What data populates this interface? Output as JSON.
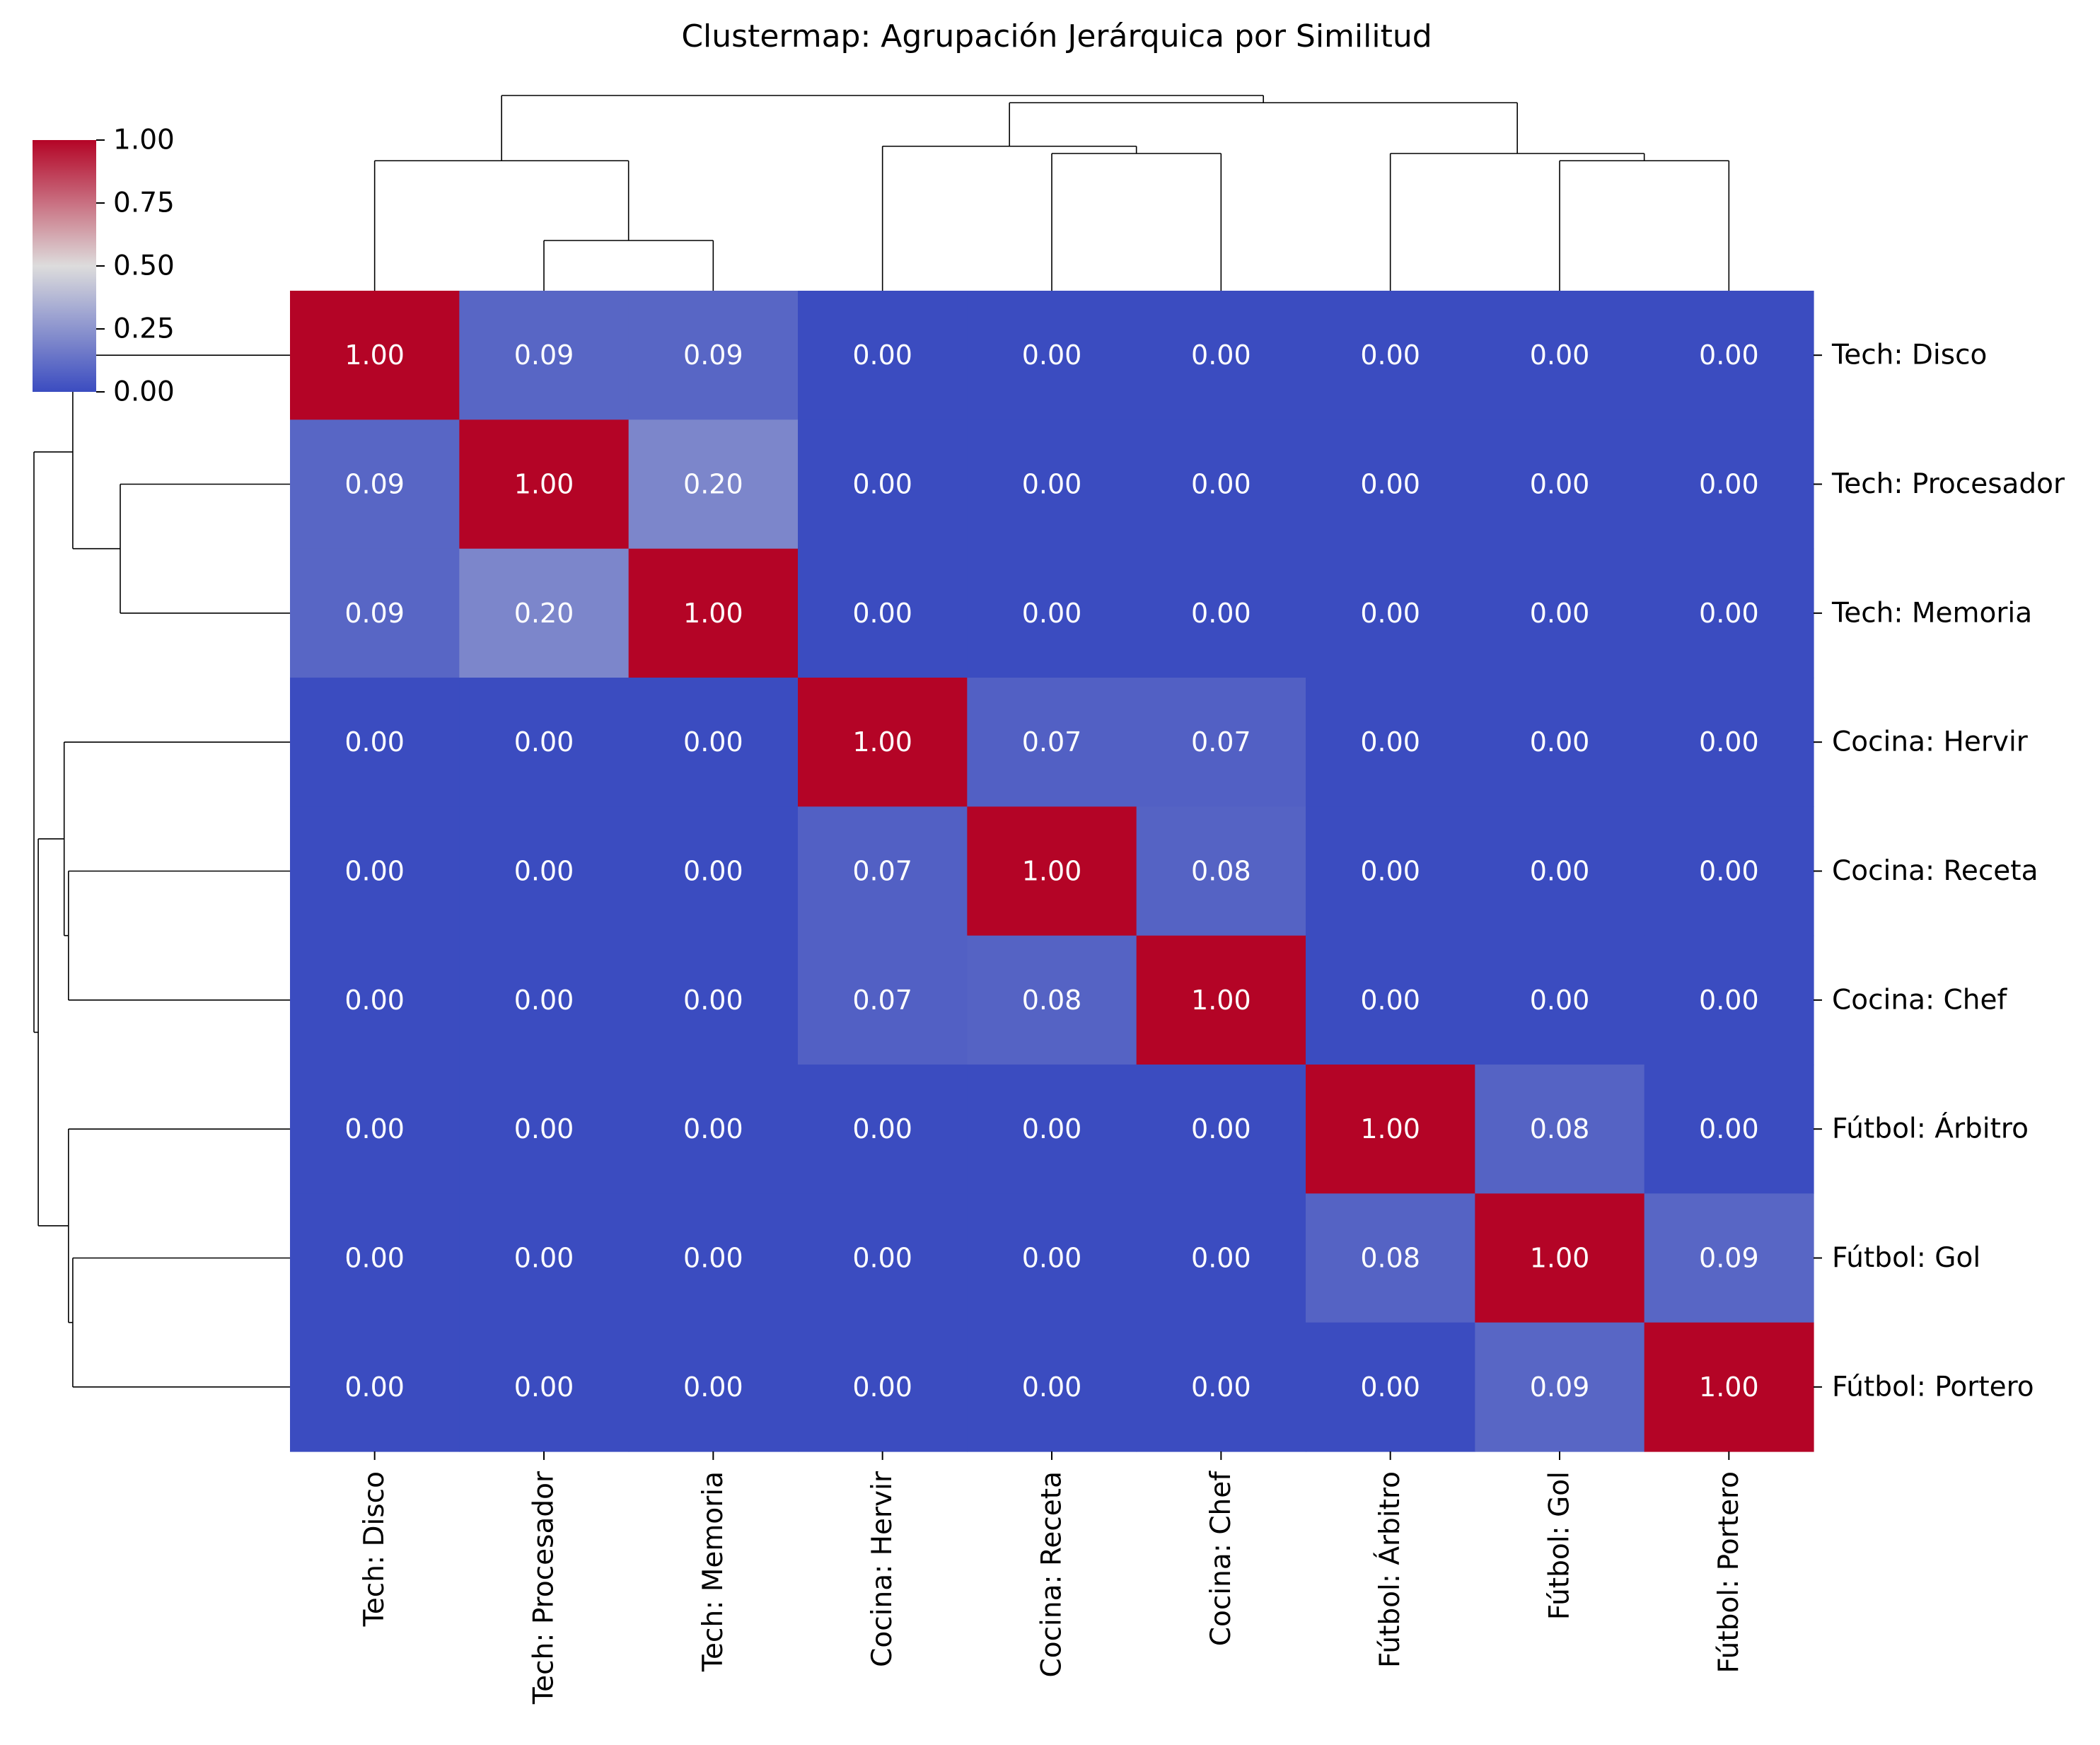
{
  "chart_data": {
    "type": "heatmap",
    "title": "Clustermap: Agrupación Jerárquica por Similitud",
    "labels": [
      "Tech: Disco",
      "Tech: Procesador",
      "Tech: Memoria",
      "Cocina: Hervir",
      "Cocina: Receta",
      "Cocina: Chef",
      "Fútbol: Árbitro",
      "Fútbol: Gol",
      "Fútbol: Portero"
    ],
    "matrix": [
      [
        1.0,
        0.09,
        0.09,
        0.0,
        0.0,
        0.0,
        0.0,
        0.0,
        0.0
      ],
      [
        0.09,
        1.0,
        0.2,
        0.0,
        0.0,
        0.0,
        0.0,
        0.0,
        0.0
      ],
      [
        0.09,
        0.2,
        1.0,
        0.0,
        0.0,
        0.0,
        0.0,
        0.0,
        0.0
      ],
      [
        0.0,
        0.0,
        0.0,
        1.0,
        0.07,
        0.07,
        0.0,
        0.0,
        0.0
      ],
      [
        0.0,
        0.0,
        0.0,
        0.07,
        1.0,
        0.08,
        0.0,
        0.0,
        0.0
      ],
      [
        0.0,
        0.0,
        0.0,
        0.07,
        0.08,
        1.0,
        0.0,
        0.0,
        0.0
      ],
      [
        0.0,
        0.0,
        0.0,
        0.0,
        0.0,
        0.0,
        1.0,
        0.08,
        0.0
      ],
      [
        0.0,
        0.0,
        0.0,
        0.0,
        0.0,
        0.0,
        0.08,
        1.0,
        0.09
      ],
      [
        0.0,
        0.0,
        0.0,
        0.0,
        0.0,
        0.0,
        0.0,
        0.09,
        1.0
      ]
    ],
    "value_format": "0.00",
    "colormap": "coolwarm",
    "colormap_stops": [
      "#3b4cc0",
      "#dddcdc",
      "#b40426"
    ],
    "vmin": 0.0,
    "vmax": 1.0,
    "colorbar_ticks": [
      "0.00",
      "0.25",
      "0.50",
      "0.75",
      "1.00"
    ],
    "dendrogram": {
      "leaf_order": [
        0,
        1,
        2,
        3,
        4,
        5,
        6,
        7,
        8
      ],
      "merges": [
        {
          "a": 1,
          "b": 2,
          "height": 0.8
        },
        {
          "a": 0,
          "b": 9,
          "height": 0.91
        },
        {
          "a": 4,
          "b": 5,
          "height": 0.92
        },
        {
          "a": 3,
          "b": 11,
          "height": 0.93
        },
        {
          "a": 7,
          "b": 8,
          "height": 0.91
        },
        {
          "a": 6,
          "b": 13,
          "height": 0.92
        },
        {
          "a": 12,
          "b": 14,
          "height": 0.99
        },
        {
          "a": 10,
          "b": 15,
          "height": 1.0
        }
      ]
    }
  }
}
